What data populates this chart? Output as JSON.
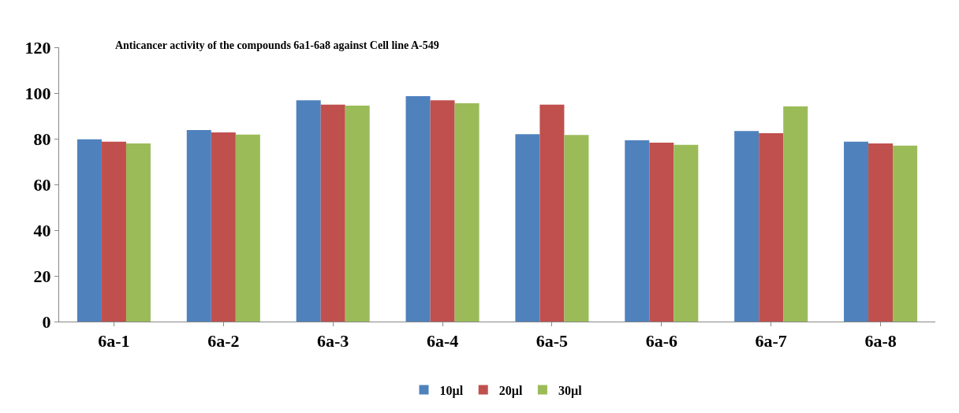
{
  "chart_data": {
    "type": "bar",
    "title": "Anticancer activity of the compounds 6a1-6a8 against Cell line A-549",
    "categories": [
      "6a-1",
      "6a-2",
      "6a-3",
      "6a-4",
      "6a-5",
      "6a-6",
      "6a-7",
      "6a-8"
    ],
    "series": [
      {
        "name": "10µl",
        "color": "#4f81bd",
        "values": [
          79.7,
          83.8,
          96.8,
          98.6,
          82,
          79.3,
          83.4,
          78.7
        ]
      },
      {
        "name": "20µl",
        "color": "#c0504d",
        "values": [
          78.7,
          82.8,
          94.9,
          96.8,
          94.9,
          78.3,
          82.4,
          77.9
        ]
      },
      {
        "name": "30µl",
        "color": "#9bbb59",
        "values": [
          77.9,
          81.8,
          94.5,
          95.5,
          81.6,
          77.3,
          94.1,
          77
        ]
      }
    ],
    "ylim": [
      0,
      120
    ],
    "yticks": [
      0,
      20,
      40,
      60,
      80,
      100,
      120
    ],
    "legend": "bottom"
  }
}
